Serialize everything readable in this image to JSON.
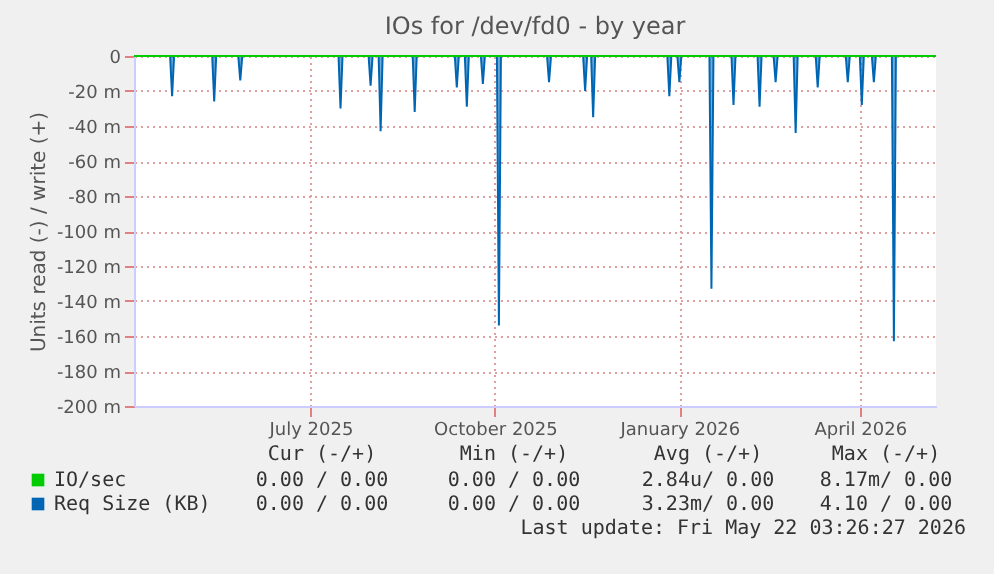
{
  "chart_data": {
    "type": "area",
    "title": "IOs for /dev/fd0 - by year",
    "ylabel": "Units read (-) / write (+)",
    "xlim": [
      "2025-04-04",
      "2026-05-09"
    ],
    "xticks": [
      {
        "value": "2025-07-01",
        "label": "July 2025"
      },
      {
        "value": "2025-10-01",
        "label": "October 2025"
      },
      {
        "value": "2026-01-01",
        "label": "January 2026"
      },
      {
        "value": "2026-04-01",
        "label": "April 2026"
      }
    ],
    "ylim": [
      -200,
      0
    ],
    "yticks": [
      {
        "value": -200,
        "label": "-200 m"
      },
      {
        "value": -180,
        "label": "-180 m"
      },
      {
        "value": -160,
        "label": "-160 m"
      },
      {
        "value": -140,
        "label": "-140 m"
      },
      {
        "value": -120,
        "label": "-120 m"
      },
      {
        "value": -100,
        "label": "-100 m"
      },
      {
        "value": -80,
        "label": "-80 m"
      },
      {
        "value": -60,
        "label": "-60 m"
      },
      {
        "value": -40,
        "label": "-40 m"
      },
      {
        "value": -20,
        "label": "-20 m"
      },
      0
    ],
    "grid": true,
    "legend": "bottom",
    "series": [
      {
        "name": "IO/sec",
        "color": "#00cc00",
        "type": "line",
        "x": [
          "2025-04-04",
          "2026-05-09"
        ],
        "values": [
          0,
          0
        ]
      },
      {
        "name": "Req Size (KB)",
        "color": "#0066b3",
        "type": "area",
        "x": [
          "2025-04-04",
          "2025-04-22",
          "2025-04-23",
          "2025-04-24",
          "2025-05-13",
          "2025-05-14",
          "2025-05-15",
          "2025-05-26",
          "2025-05-27",
          "2025-05-28",
          "2025-07-15",
          "2025-07-16",
          "2025-07-17",
          "2025-07-30",
          "2025-07-31",
          "2025-08-01",
          "2025-08-04",
          "2025-08-05",
          "2025-08-06",
          "2025-08-21",
          "2025-08-22",
          "2025-08-23",
          "2025-09-11",
          "2025-09-12",
          "2025-09-13",
          "2025-09-16",
          "2025-09-17",
          "2025-09-18",
          "2025-09-24",
          "2025-09-25",
          "2025-09-26",
          "2025-10-02",
          "2025-10-03",
          "2025-10-04",
          "2025-10-27",
          "2025-10-28",
          "2025-10-29",
          "2025-11-14",
          "2025-11-15",
          "2025-11-16",
          "2025-11-18",
          "2025-11-19",
          "2025-11-20",
          "2025-12-26",
          "2025-12-27",
          "2025-12-28",
          "2025-12-31",
          "2026-01-01",
          "2026-01-02",
          "2026-01-16",
          "2026-01-17",
          "2026-01-18",
          "2026-01-27",
          "2026-01-28",
          "2026-01-29",
          "2026-02-09",
          "2026-02-10",
          "2026-02-11",
          "2026-02-17",
          "2026-02-18",
          "2026-02-19",
          "2026-02-27",
          "2026-02-28",
          "2026-03-01",
          "2026-03-10",
          "2026-03-11",
          "2026-03-12",
          "2026-03-25",
          "2026-03-26",
          "2026-03-27",
          "2026-04-01",
          "2026-04-02",
          "2026-04-03",
          "2026-04-07",
          "2026-04-08",
          "2026-04-09",
          "2026-04-17",
          "2026-04-18",
          "2026-04-19",
          "2026-05-09"
        ],
        "values": [
          0,
          0,
          -23,
          0,
          0,
          -26,
          0,
          0,
          -14,
          0,
          0,
          -30,
          0,
          0,
          -17,
          0,
          0,
          -43,
          0,
          0,
          -32,
          0,
          0,
          -18,
          0,
          0,
          -29,
          0,
          0,
          -16,
          0,
          0,
          -154,
          0,
          0,
          -15,
          0,
          0,
          -20,
          0,
          0,
          -35,
          0,
          0,
          -23,
          0,
          0,
          -15,
          0,
          0,
          -133,
          0,
          0,
          -28,
          0,
          0,
          -29,
          0,
          0,
          -15,
          0,
          0,
          -44,
          0,
          0,
          -18,
          0,
          0,
          -15,
          0,
          0,
          -28,
          0,
          0,
          -15,
          0,
          0,
          -163,
          0,
          0
        ]
      }
    ],
    "annotations": [
      "Cur (-/+)",
      "Min (-/+)",
      "Avg (-/+)",
      "Max (-/+)",
      "0.00 / 0.00",
      "0.00 / 0.00",
      "2.84u/ 0.00",
      "8.17m/ 0.00",
      "0.00 / 0.00",
      "0.00 / 0.00",
      "3.23m/ 0.00",
      "4.10 / 0.00",
      "Last update: Fri May 22 03:26:27 2026"
    ]
  }
}
